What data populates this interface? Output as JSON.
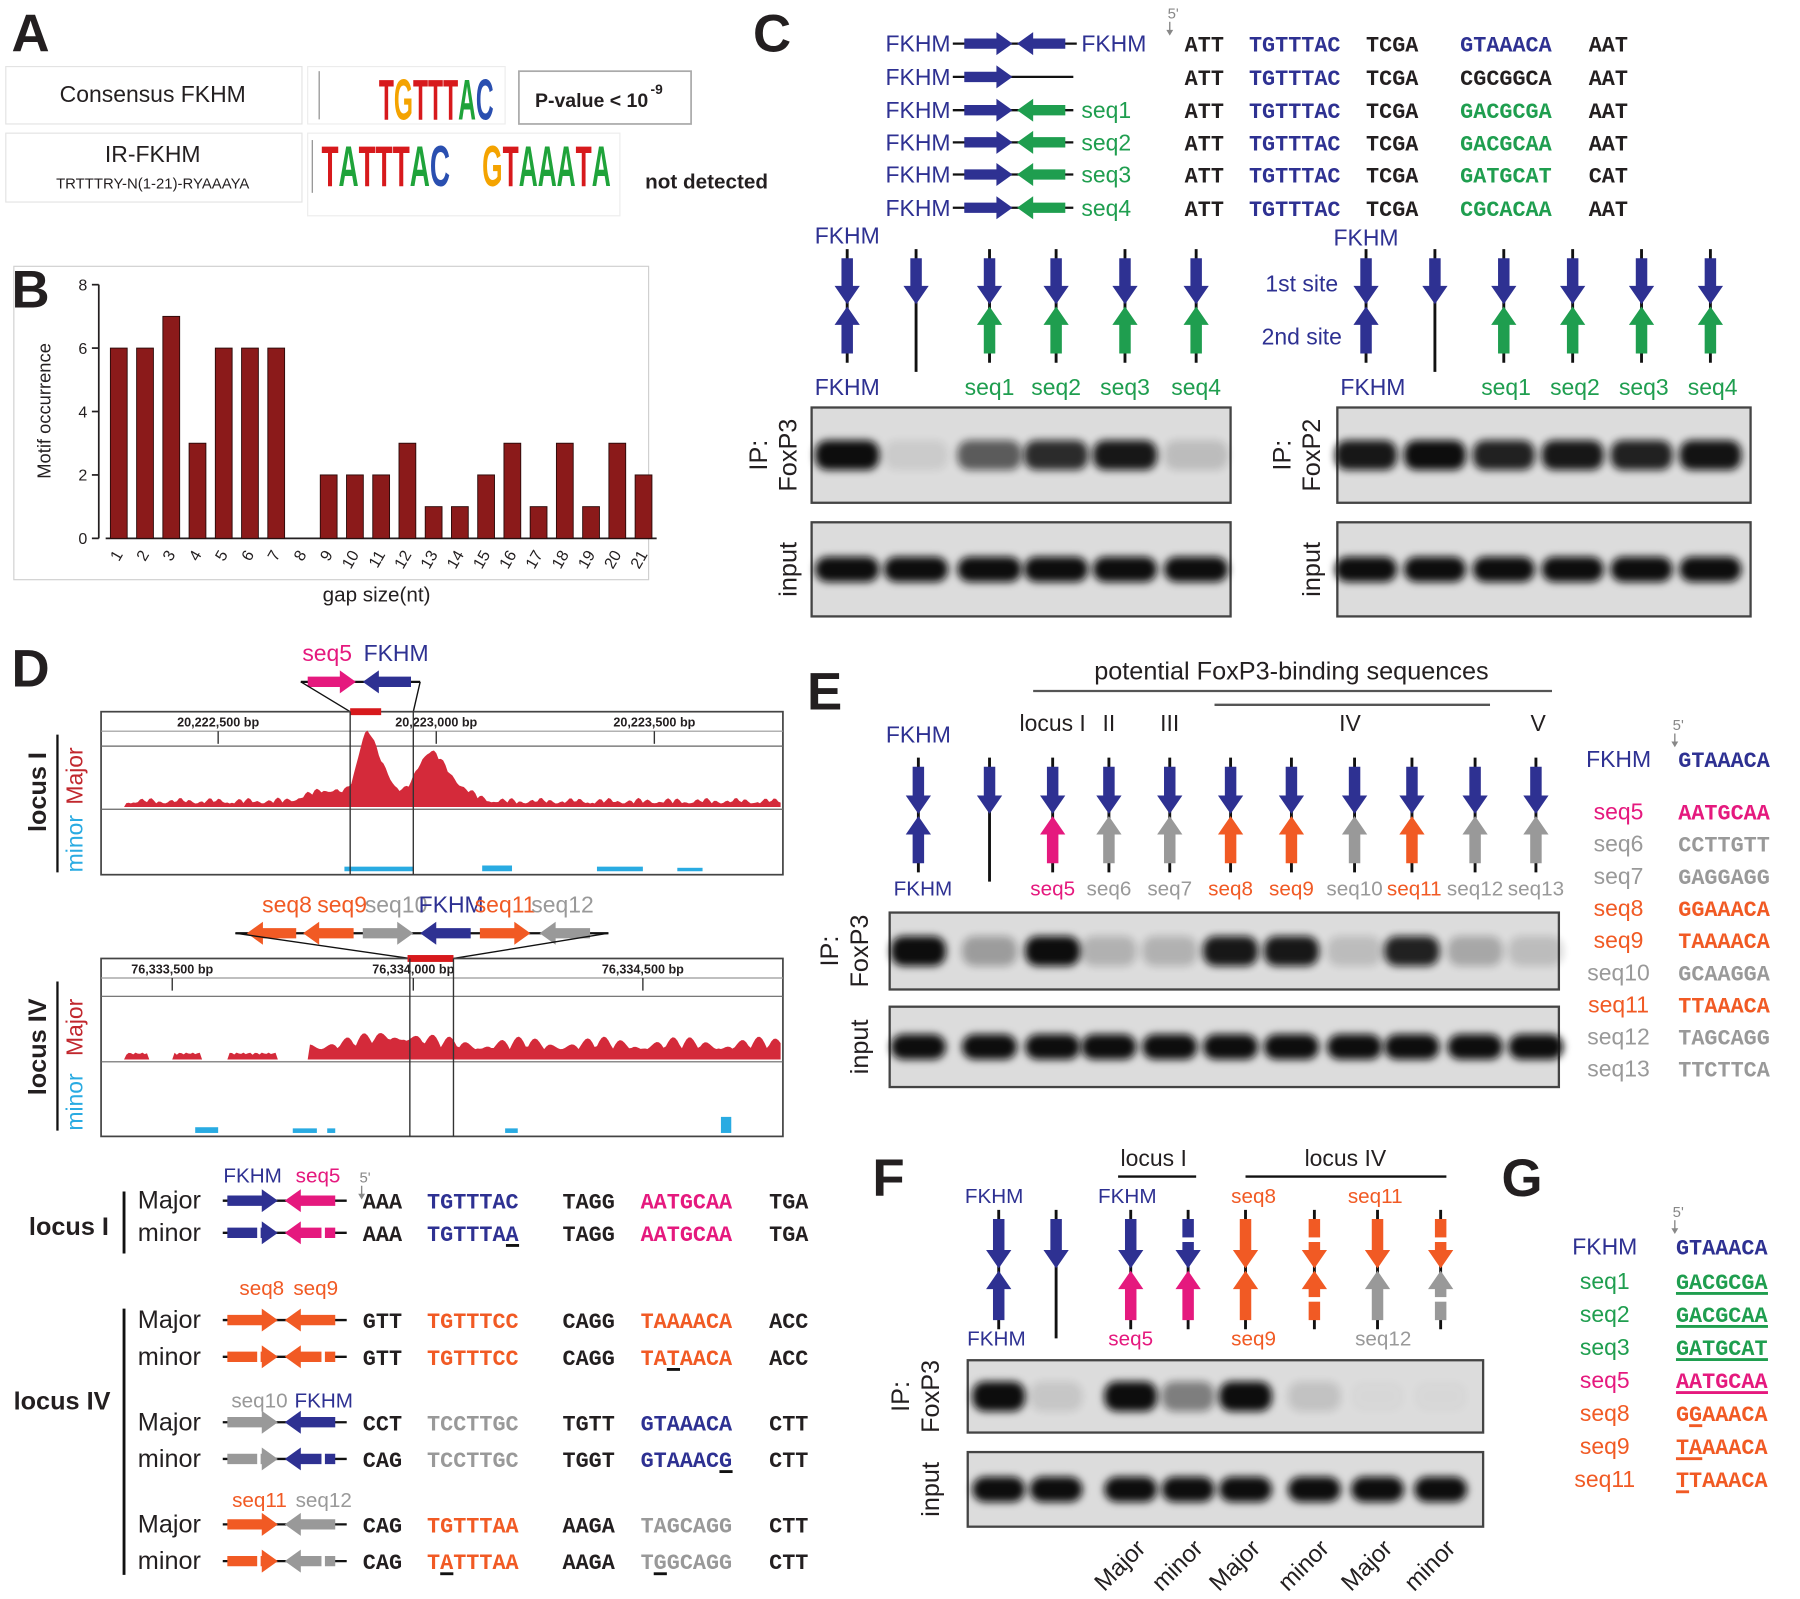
{
  "panel_labels": [
    "A",
    "B",
    "C",
    "D",
    "E",
    "F",
    "G"
  ],
  "panel_a": {
    "consensus": {
      "label": "Consensus FKHM",
      "logo": "TGTTTAC",
      "result": "P-value < 10",
      "result_exponent": "-9"
    },
    "ir": {
      "label": "IR-FKHM",
      "pattern": "TRTTTRY-N(1-21)-RYAAAYA",
      "logo_left": "TATTTAC",
      "logo_right": "GTAAATA",
      "result": "not detected"
    }
  },
  "chart_data": {
    "type": "bar",
    "categories": [
      "1",
      "2",
      "3",
      "4",
      "5",
      "6",
      "7",
      "8",
      "9",
      "10",
      "11",
      "12",
      "13",
      "14",
      "15",
      "16",
      "17",
      "18",
      "19",
      "20",
      "21"
    ],
    "values": [
      6,
      6,
      7,
      3,
      6,
      6,
      6,
      0,
      2,
      2,
      2,
      3,
      1,
      1,
      2,
      3,
      1,
      3,
      1,
      3,
      2
    ],
    "color": "#8b1a1a",
    "ylim": [
      0,
      8
    ],
    "yticks": [
      0,
      2,
      4,
      6,
      8
    ],
    "y_label": "Motif occurrence",
    "x_label": "gap size(nt)"
  },
  "panel_c": {
    "five_prime": "5'",
    "constructs": [
      {
        "name": "FKHM",
        "partner": "FKHM",
        "partner_color": "#2e3192",
        "parts": [
          "ATT",
          "TGTTTAC",
          "TCGA",
          "GTAAACA",
          "AAT"
        ],
        "colors": [
          "#231f20",
          "#2e3192",
          "#231f20",
          "#2e3192",
          "#231f20"
        ]
      },
      {
        "name": "FKHM",
        "partner": null,
        "parts": [
          "ATT",
          "TGTTTAC",
          "TCGA",
          "CGCGGCA",
          "AAT"
        ],
        "colors": [
          "#231f20",
          "#2e3192",
          "#231f20",
          "#231f20",
          "#231f20"
        ]
      },
      {
        "name": "FKHM",
        "partner": "seq1",
        "partner_color": "#1f9e4f",
        "parts": [
          "ATT",
          "TGTTTAC",
          "TCGA",
          "GACGCGA",
          "AAT"
        ],
        "colors": [
          "#231f20",
          "#2e3192",
          "#231f20",
          "#1f9e4f",
          "#231f20"
        ]
      },
      {
        "name": "FKHM",
        "partner": "seq2",
        "partner_color": "#1f9e4f",
        "parts": [
          "ATT",
          "TGTTTAC",
          "TCGA",
          "GACGCAA",
          "AAT"
        ],
        "colors": [
          "#231f20",
          "#2e3192",
          "#231f20",
          "#1f9e4f",
          "#231f20"
        ]
      },
      {
        "name": "FKHM",
        "partner": "seq3",
        "partner_color": "#1f9e4f",
        "parts": [
          "ATT",
          "TGTTTAC",
          "TCGA",
          "GATGCAT",
          "CAT"
        ],
        "colors": [
          "#231f20",
          "#2e3192",
          "#231f20",
          "#1f9e4f",
          "#231f20"
        ]
      },
      {
        "name": "FKHM",
        "partner": "seq4",
        "partner_color": "#1f9e4f",
        "parts": [
          "ATT",
          "TGTTTAC",
          "TCGA",
          "CGCACAA",
          "AAT"
        ],
        "colors": [
          "#231f20",
          "#2e3192",
          "#231f20",
          "#1f9e4f",
          "#231f20"
        ]
      }
    ],
    "gels": [
      {
        "top_label": {
          "text": "FKHM",
          "color": "#2e3192"
        },
        "bottom_labels": [
          {
            "text": "FKHM",
            "color": "#2e3192"
          },
          null,
          {
            "text": "seq1",
            "color": "#1f9e4f"
          },
          {
            "text": "seq2",
            "color": "#1f9e4f"
          },
          {
            "text": "seq3",
            "color": "#1f9e4f"
          },
          {
            "text": "seq4",
            "color": "#1f9e4f"
          }
        ],
        "ip_label": "IP:",
        "antibody": "FoxP3",
        "input_label": "input",
        "ip_bands": [
          1,
          0.08,
          0.62,
          0.85,
          0.95,
          0.15
        ],
        "input_bands": [
          1,
          1,
          1,
          1,
          1,
          1
        ]
      },
      {
        "top_label": {
          "text": "FKHM",
          "color": "#2e3192"
        },
        "site_labels": [
          {
            "text": "1st site",
            "color": "#2e3192"
          },
          {
            "text": "2nd site",
            "color": "#2e3192"
          }
        ],
        "bottom_labels": [
          {
            "text": "FKHM",
            "color": "#2e3192"
          },
          null,
          {
            "text": "seq1",
            "color": "#1f9e4f"
          },
          {
            "text": "seq2",
            "color": "#1f9e4f"
          },
          {
            "text": "seq3",
            "color": "#1f9e4f"
          },
          {
            "text": "seq4",
            "color": "#1f9e4f"
          }
        ],
        "ip_label": "IP:",
        "antibody": "FoxP2",
        "input_label": "input",
        "ip_bands": [
          0.95,
          1,
          0.9,
          0.95,
          0.9,
          0.97
        ],
        "input_bands": [
          1,
          1,
          1,
          1,
          1,
          1
        ]
      }
    ]
  },
  "panel_d": {
    "tracks": [
      {
        "name": "locus I",
        "major": "Major",
        "minor": "minor",
        "construct_labels": [
          {
            "text": "seq5",
            "color": "#e5197e"
          },
          {
            "text": "FKHM",
            "color": "#2e3192"
          }
        ],
        "coordinates": [
          "20,222,500 bp",
          "20,223,000 bp",
          "20,223,500 bp"
        ]
      },
      {
        "name": "locus IV",
        "major": "Major",
        "minor": "minor",
        "construct_labels": [
          {
            "text": "seq8",
            "color": "#f15a24"
          },
          {
            "text": "seq9",
            "color": "#f15a24"
          },
          {
            "text": "seq10",
            "color": "#999999"
          },
          {
            "text": "FKHM",
            "color": "#2e3192"
          },
          {
            "text": "seq11",
            "color": "#f15a24"
          },
          {
            "text": "seq12",
            "color": "#999999"
          }
        ],
        "coordinates": [
          "76,333,500 bp",
          "76,334,000 bp",
          "76,334,500 bp"
        ]
      }
    ],
    "alleles": {
      "five_prime": "5'",
      "loci": [
        {
          "name": "locus I",
          "groups": [
            {
              "labels": [
                {
                  "text": "FKHM",
                  "color": "#2e3192"
                },
                {
                  "text": "seq5",
                  "color": "#e5197e"
                }
              ],
              "rows": [
                {
                  "allele": "Major",
                  "parts": [
                    "AAA",
                    "TGTTTAC",
                    "TAGG",
                    "AATGCAA",
                    "TGA"
                  ],
                  "colors": [
                    "#231f20",
                    "#2e3192",
                    "#231f20",
                    "#e5197e",
                    "#231f20"
                  ]
                },
                {
                  "allele": "minor",
                  "parts": [
                    "AAA",
                    "TGTTTAA",
                    "TAGG",
                    "AATGCAA",
                    "TGA"
                  ],
                  "colors": [
                    "#231f20",
                    "#2e3192",
                    "#231f20",
                    "#e5197e",
                    "#231f20"
                  ],
                  "underline": [
                    [
                      1,
                      6,
                      1
                    ]
                  ]
                }
              ]
            }
          ]
        },
        {
          "name": "locus IV",
          "groups": [
            {
              "labels": [
                {
                  "text": "seq8",
                  "color": "#f15a24"
                },
                {
                  "text": "seq9",
                  "color": "#f15a24"
                }
              ],
              "rows": [
                {
                  "allele": "Major",
                  "parts": [
                    "GTT",
                    "TGTTTCC",
                    "CAGG",
                    "TAAAACA",
                    "ACC"
                  ],
                  "colors": [
                    "#231f20",
                    "#f15a24",
                    "#231f20",
                    "#f15a24",
                    "#231f20"
                  ]
                },
                {
                  "allele": "minor",
                  "parts": [
                    "GTT",
                    "TGTTTCC",
                    "CAGG",
                    "TATAACA",
                    "ACC"
                  ],
                  "colors": [
                    "#231f20",
                    "#f15a24",
                    "#231f20",
                    "#f15a24",
                    "#231f20"
                  ],
                  "underline": [
                    [
                      3,
                      2,
                      1
                    ]
                  ]
                }
              ]
            },
            {
              "labels": [
                {
                  "text": "seq10",
                  "color": "#999999"
                },
                {
                  "text": "FKHM",
                  "color": "#2e3192"
                }
              ],
              "rows": [
                {
                  "allele": "Major",
                  "parts": [
                    "CCT",
                    "TCCTTGC",
                    "TGTT",
                    "GTAAACA",
                    "CTT"
                  ],
                  "colors": [
                    "#231f20",
                    "#999999",
                    "#231f20",
                    "#2e3192",
                    "#231f20"
                  ]
                },
                {
                  "allele": "minor",
                  "parts": [
                    "CAG",
                    "TCCTTGC",
                    "TGGT",
                    "GTAAACG",
                    "CTT"
                  ],
                  "colors": [
                    "#231f20",
                    "#999999",
                    "#231f20",
                    "#2e3192",
                    "#231f20"
                  ],
                  "underline": [
                    [
                      3,
                      6,
                      1
                    ]
                  ]
                }
              ]
            },
            {
              "labels": [
                {
                  "text": "seq11",
                  "color": "#f15a24"
                },
                {
                  "text": "seq12",
                  "color": "#999999"
                }
              ],
              "rows": [
                {
                  "allele": "Major",
                  "parts": [
                    "CAG",
                    "TGTTTAA",
                    "AAGA",
                    "TAGCAGG",
                    "CTT"
                  ],
                  "colors": [
                    "#231f20",
                    "#f15a24",
                    "#231f20",
                    "#999999",
                    "#231f20"
                  ]
                },
                {
                  "allele": "minor",
                  "parts": [
                    "CAG",
                    "TATTTAA",
                    "AAGA",
                    "TGGCAGG",
                    "CTT"
                  ],
                  "colors": [
                    "#231f20",
                    "#f15a24",
                    "#231f20",
                    "#999999",
                    "#231f20"
                  ],
                  "underline": [
                    [
                      1,
                      1,
                      1
                    ],
                    [
                      3,
                      1,
                      1
                    ]
                  ]
                }
              ]
            }
          ]
        }
      ]
    }
  },
  "panel_e": {
    "title": "potential FoxP3-binding sequences",
    "loci": [
      "locus I",
      "II",
      "III",
      "IV",
      "V"
    ],
    "top_label": {
      "text": "FKHM",
      "color": "#2e3192"
    },
    "bottom_labels": [
      {
        "text": "FKHM",
        "color": "#2e3192"
      },
      null,
      {
        "text": "seq5",
        "color": "#e5197e"
      },
      {
        "text": "seq6",
        "color": "#999999"
      },
      {
        "text": "seq7",
        "color": "#999999"
      },
      {
        "text": "seq8",
        "color": "#f15a24"
      },
      {
        "text": "seq9",
        "color": "#f15a24"
      },
      {
        "text": "seq10",
        "color": "#999999"
      },
      {
        "text": "seq11",
        "color": "#f15a24"
      },
      {
        "text": "seq12",
        "color": "#999999"
      },
      {
        "text": "seq13",
        "color": "#999999"
      }
    ],
    "ip_label": "IP:",
    "antibody": "FoxP3",
    "input_label": "input",
    "ip_bands": [
      1,
      0.3,
      1,
      0.2,
      0.2,
      0.95,
      0.95,
      0.15,
      0.9,
      0.25,
      0.15
    ],
    "input_bands": [
      1,
      1,
      1,
      1,
      1,
      1,
      1,
      1,
      1,
      1,
      1
    ],
    "table": {
      "five_prime": "5'",
      "rows": [
        {
          "name": "FKHM",
          "seq": "GTAAACA",
          "color": "#2e3192"
        },
        {
          "name": "seq5",
          "seq": "AATGCAA",
          "color": "#e5197e"
        },
        {
          "name": "seq6",
          "seq": "CCTTGTT",
          "color": "#999999"
        },
        {
          "name": "seq7",
          "seq": "GAGGAGG",
          "color": "#999999"
        },
        {
          "name": "seq8",
          "seq": "GGAAACA",
          "color": "#f15a24"
        },
        {
          "name": "seq9",
          "seq": "TAAAACA",
          "color": "#f15a24"
        },
        {
          "name": "seq10",
          "seq": "GCAAGGA",
          "color": "#999999"
        },
        {
          "name": "seq11",
          "seq": "TTAAACA",
          "color": "#f15a24"
        },
        {
          "name": "seq12",
          "seq": "TAGCAGG",
          "color": "#999999"
        },
        {
          "name": "seq13",
          "seq": "TTCTTCA",
          "color": "#999999"
        }
      ]
    }
  },
  "panel_f": {
    "loci": [
      "locus I",
      "locus IV"
    ],
    "top_labels": [
      {
        "text": "FKHM",
        "color": "#2e3192"
      },
      null,
      {
        "text": "FKHM",
        "color": "#2e3192"
      },
      null,
      {
        "text": "seq8",
        "color": "#f15a24"
      },
      null,
      {
        "text": "seq11",
        "color": "#f15a24"
      },
      null
    ],
    "bottom_labels": [
      {
        "text": "FKHM",
        "color": "#2e3192"
      },
      null,
      {
        "text": "seq5",
        "color": "#e5197e"
      },
      null,
      {
        "text": "seq9",
        "color": "#f15a24"
      },
      null,
      {
        "text": "seq12",
        "color": "#999999"
      },
      null
    ],
    "ip_label": "IP:",
    "antibody": "FoxP3",
    "input_label": "input",
    "ip_bands": [
      1,
      0.1,
      1,
      0.45,
      1,
      0.12,
      0.02,
      0.02
    ],
    "input_bands": [
      1,
      1,
      1,
      1,
      1,
      1,
      1,
      1
    ],
    "alleles": [
      "Major",
      "minor",
      "Major",
      "minor",
      "Major",
      "minor"
    ]
  },
  "panel_g": {
    "five_prime": "5'",
    "rows": [
      {
        "name": "FKHM",
        "seq": "GTAAACA",
        "color": "#2e3192"
      },
      {
        "name": "seq1",
        "seq": "GACGCGA",
        "color": "#1f9e4f",
        "underline": [
          0,
          7
        ]
      },
      {
        "name": "seq2",
        "seq": "GACGCAA",
        "color": "#1f9e4f",
        "underline": [
          0,
          7
        ]
      },
      {
        "name": "seq3",
        "seq": "GATGCAT",
        "color": "#1f9e4f",
        "underline": [
          0,
          7
        ]
      },
      {
        "name": "seq5",
        "seq": "AATGCAA",
        "color": "#e5197e",
        "underline": [
          0,
          7
        ]
      },
      {
        "name": "seq8",
        "seq": "GGAAACA",
        "color": "#f15a24",
        "underline": [
          1,
          1
        ]
      },
      {
        "name": "seq9",
        "seq": "TAAAACA",
        "color": "#f15a24",
        "underline": [
          0,
          2
        ]
      },
      {
        "name": "seq11",
        "seq": "TTAAACA",
        "color": "#f15a24",
        "underline": [
          0,
          1
        ]
      }
    ]
  }
}
